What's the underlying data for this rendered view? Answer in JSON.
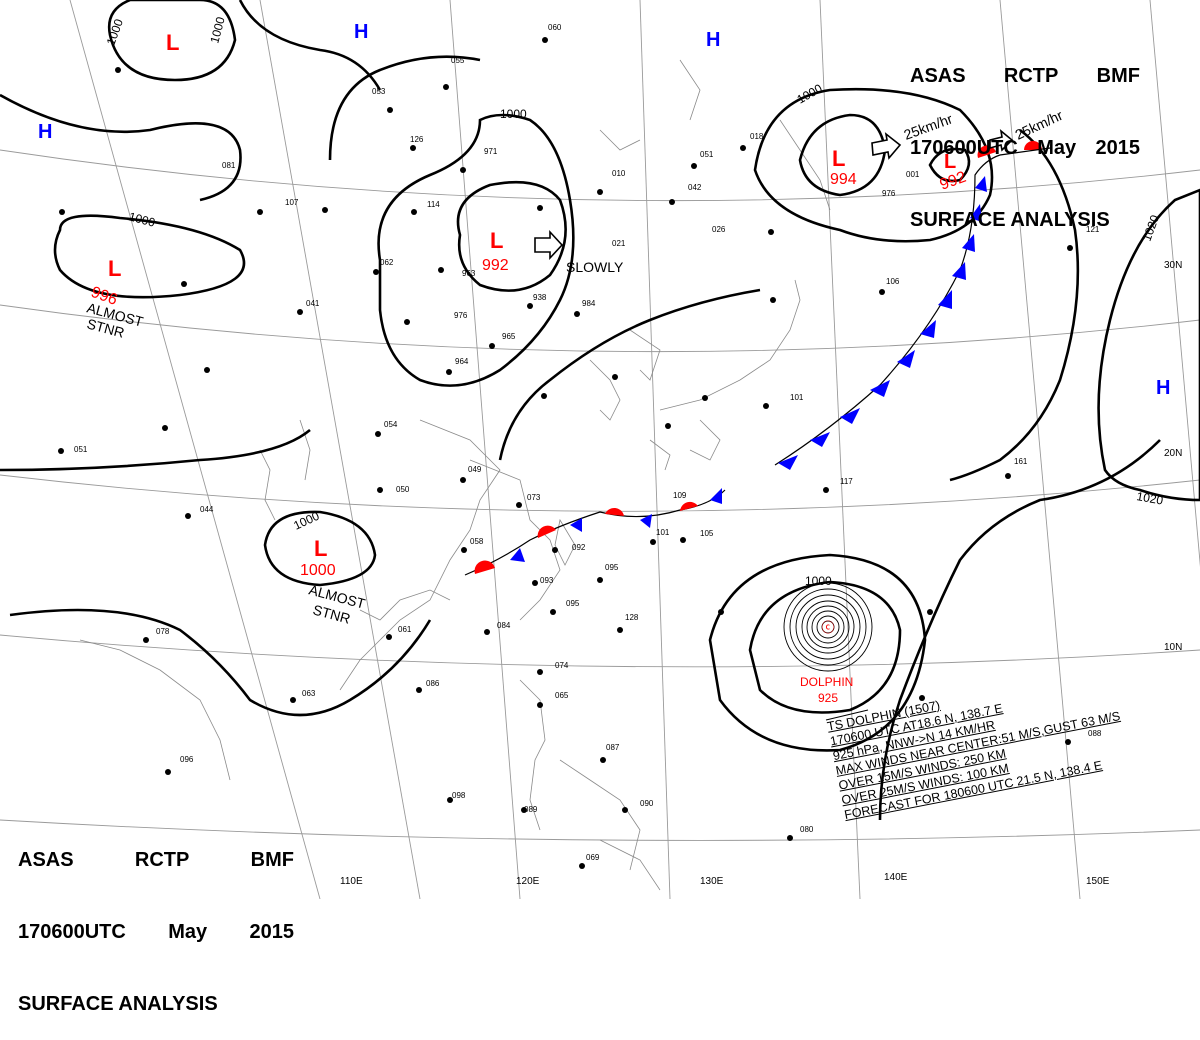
{
  "header": {
    "agency": "ASAS",
    "station": "RCTP",
    "unit": "BMF",
    "time": "170600UTC",
    "month": "May",
    "year": "2015",
    "title": "SURFACE ANALYSIS"
  },
  "lows": [
    {
      "mark": "L",
      "pressure": ""
    },
    {
      "mark": "L",
      "pressure": "996"
    },
    {
      "mark": "L",
      "pressure": "992"
    },
    {
      "mark": "L",
      "pressure": "994"
    },
    {
      "mark": "L",
      "pressure": "992"
    },
    {
      "mark": "L",
      "pressure": "1000"
    }
  ],
  "highs": [
    "H",
    "H",
    "H",
    "H"
  ],
  "labels": {
    "slowly": "SLOWLY",
    "almost_stnr": "ALMOST",
    "stnr": "STNR",
    "speed_1": "25km/hr",
    "speed_2": "25km/hr"
  },
  "isobar_labels": [
    "1000",
    "1000",
    "1000",
    "1000",
    "1000",
    "1000",
    "1000",
    "1020",
    "1020"
  ],
  "typhoon": {
    "name": "DOLPHIN",
    "pressure": "925",
    "info_lines": [
      "TS  DOLPHIN  (1507)",
      "170600 UTC  AT18.6 N, 138.7 E",
      "925 hPa, NNW->N  14 KM/HR",
      "MAX WINDS NEAR CENTER:51 M/S,GUST 63 M/S",
      "OVER 15M/S WINDS: 250 KM",
      "OVER 25M/S WINDS: 100 KM",
      "FORECAST FOR 180600 UTC 21.5 N, 138.4 E"
    ]
  },
  "lon_labels": [
    "110E",
    "120E",
    "130E",
    "140E",
    "150E"
  ],
  "lat_labels": [
    "30N",
    "20N",
    "10N"
  ],
  "station_numbers": [
    "060",
    "055",
    "053",
    "126",
    "971",
    "010",
    "021",
    "042",
    "051",
    "018",
    "001",
    "976",
    "107",
    "114",
    "062",
    "963",
    "041",
    "976",
    "938",
    "984",
    "965",
    "964",
    "026",
    "121",
    "106",
    "101",
    "054",
    "049",
    "050",
    "073",
    "109",
    "058",
    "092",
    "101",
    "105",
    "093",
    "095",
    "095",
    "128",
    "084",
    "061",
    "074",
    "065",
    "087",
    "090",
    "088",
    "089",
    "098",
    "086",
    "063",
    "096",
    "078",
    "044",
    "051",
    "117",
    "161",
    "080",
    "069",
    "081"
  ],
  "colors": {
    "low": "#ff0000",
    "high": "#0000ff",
    "isobar": "#000000",
    "warm_front": "#ff0000",
    "cold_front": "#0000ff"
  }
}
